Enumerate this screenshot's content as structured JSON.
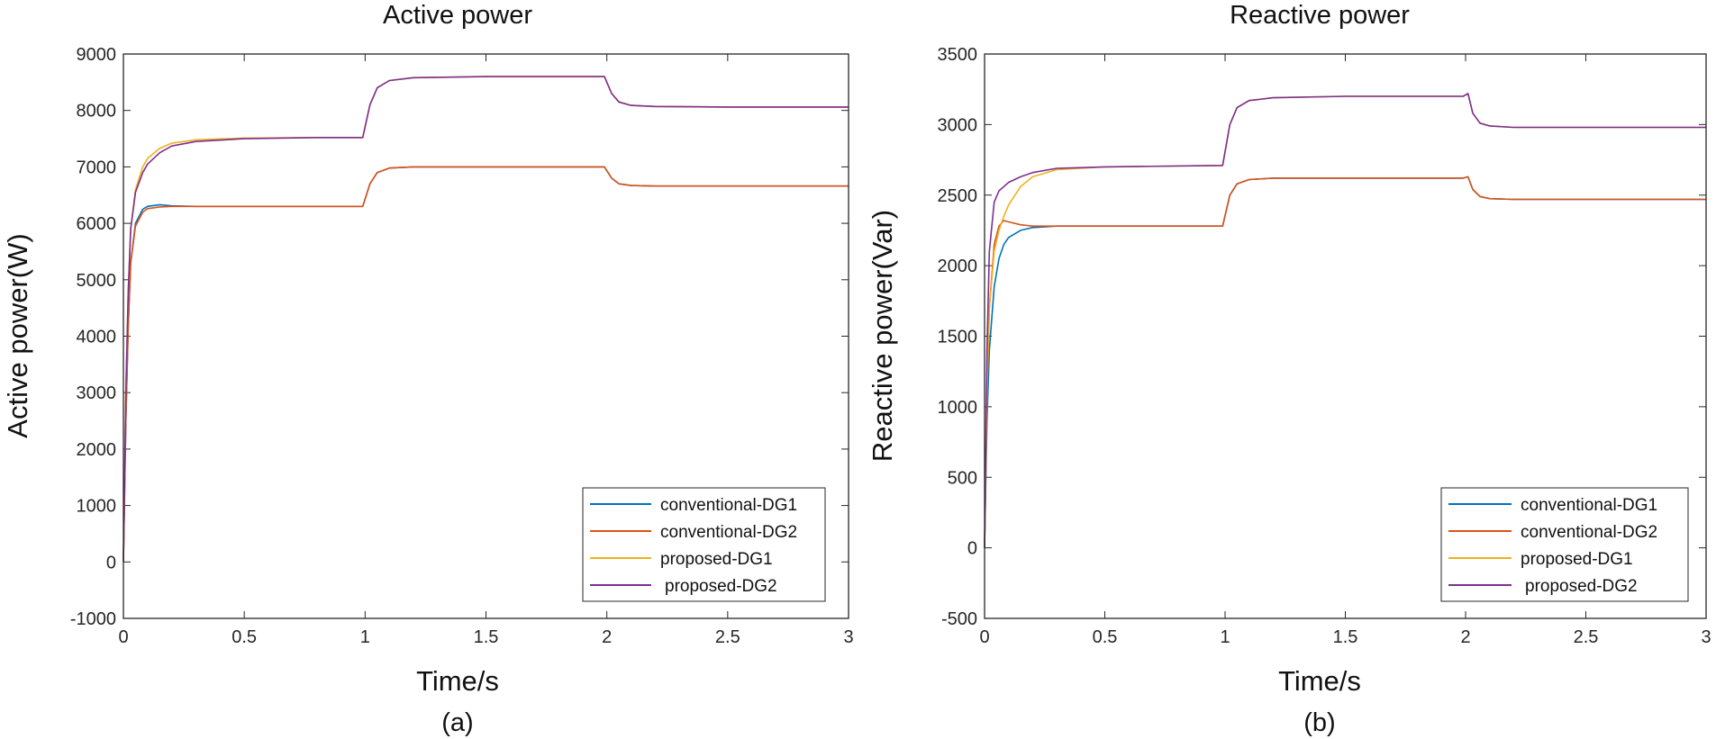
{
  "chart_data": [
    {
      "type": "line",
      "title": "Active power",
      "xlabel": "Time/s",
      "ylabel": "Active power(W)",
      "caption": "(a)",
      "xlim": [
        0,
        3
      ],
      "ylim": [
        -1000,
        9000
      ],
      "xticks": [
        0,
        0.5,
        1,
        1.5,
        2,
        2.5,
        3
      ],
      "yticks": [
        -1000,
        0,
        1000,
        2000,
        3000,
        4000,
        5000,
        6000,
        7000,
        8000,
        9000
      ],
      "xtick_labels": [
        "0",
        "0.5",
        "1",
        "1.5",
        "2",
        "2.5",
        "3"
      ],
      "ytick_labels": [
        "-1000",
        "0",
        "1000",
        "2000",
        "3000",
        "4000",
        "5000",
        "6000",
        "7000",
        "8000",
        "9000"
      ],
      "legend_position": "bottom-right",
      "series": [
        {
          "name": "conventional-DG1",
          "color": "#0072BD",
          "x": [
            0,
            0.01,
            0.02,
            0.03,
            0.05,
            0.08,
            0.1,
            0.15,
            0.2,
            0.3,
            0.5,
            0.8,
            0.99,
            1.02,
            1.05,
            1.1,
            1.2,
            1.5,
            1.99,
            2.02,
            2.05,
            2.1,
            2.2,
            2.5,
            3.0
          ],
          "y": [
            0,
            2500,
            4200,
            5300,
            6000,
            6250,
            6300,
            6330,
            6310,
            6300,
            6300,
            6300,
            6300,
            6700,
            6900,
            6980,
            7000,
            7000,
            7000,
            6800,
            6700,
            6670,
            6660,
            6660,
            6660
          ]
        },
        {
          "name": "conventional-DG2",
          "color": "#D95319",
          "x": [
            0,
            0.01,
            0.02,
            0.03,
            0.05,
            0.08,
            0.1,
            0.15,
            0.2,
            0.3,
            0.5,
            0.8,
            0.99,
            1.02,
            1.05,
            1.1,
            1.2,
            1.5,
            1.99,
            2.02,
            2.05,
            2.1,
            2.2,
            2.5,
            3.0
          ],
          "y": [
            0,
            2500,
            4200,
            5300,
            5950,
            6200,
            6260,
            6290,
            6300,
            6300,
            6300,
            6300,
            6300,
            6700,
            6900,
            6980,
            7000,
            7000,
            7000,
            6800,
            6700,
            6670,
            6660,
            6660,
            6660
          ]
        },
        {
          "name": "proposed-DG1",
          "color": "#EDB120",
          "x": [
            0,
            0.01,
            0.02,
            0.03,
            0.05,
            0.08,
            0.1,
            0.15,
            0.2,
            0.3,
            0.5,
            0.8,
            0.99,
            1.02,
            1.05,
            1.1,
            1.2,
            1.5,
            1.99,
            2.02,
            2.05,
            2.1,
            2.2,
            2.5,
            3.0
          ],
          "y": [
            0,
            3000,
            4800,
            5900,
            6600,
            7000,
            7150,
            7330,
            7420,
            7480,
            7510,
            7520,
            7520,
            8100,
            8400,
            8530,
            8580,
            8600,
            8600,
            8300,
            8150,
            8090,
            8070,
            8060,
            8060
          ]
        },
        {
          "name": "proposed-DG2",
          "color": "#7E2F8E",
          "x": [
            0,
            0.01,
            0.02,
            0.03,
            0.05,
            0.08,
            0.1,
            0.15,
            0.2,
            0.3,
            0.5,
            0.8,
            0.99,
            1.02,
            1.05,
            1.1,
            1.2,
            1.5,
            1.99,
            2.02,
            2.05,
            2.1,
            2.2,
            2.5,
            3.0
          ],
          "y": [
            0,
            3000,
            4800,
            5900,
            6550,
            6900,
            7050,
            7250,
            7370,
            7450,
            7500,
            7520,
            7520,
            8100,
            8400,
            8530,
            8580,
            8600,
            8600,
            8300,
            8150,
            8090,
            8070,
            8060,
            8060
          ]
        }
      ]
    },
    {
      "type": "line",
      "title": "Reactive power",
      "xlabel": "Time/s",
      "ylabel": "Reactive power(Var)",
      "caption": "(b)",
      "xlim": [
        0,
        3
      ],
      "ylim": [
        -500,
        3500
      ],
      "xticks": [
        0,
        0.5,
        1,
        1.5,
        2,
        2.5,
        3
      ],
      "yticks": [
        -500,
        0,
        500,
        1000,
        1500,
        2000,
        2500,
        3000,
        3500
      ],
      "xtick_labels": [
        "0",
        "0.5",
        "1",
        "1.5",
        "2",
        "2.5",
        "3"
      ],
      "ytick_labels": [
        "-500",
        "0",
        "500",
        "1000",
        "1500",
        "2000",
        "2500",
        "3000",
        "3500"
      ],
      "legend_position": "bottom-right",
      "series": [
        {
          "name": "conventional-DG1",
          "color": "#0072BD",
          "x": [
            0,
            0.01,
            0.02,
            0.04,
            0.06,
            0.08,
            0.1,
            0.15,
            0.2,
            0.3,
            0.5,
            0.99,
            1.02,
            1.05,
            1.1,
            1.2,
            1.5,
            1.99,
            2.01,
            2.03,
            2.06,
            2.1,
            2.2,
            2.5,
            3.0
          ],
          "y": [
            0,
            900,
            1400,
            1850,
            2050,
            2150,
            2200,
            2250,
            2270,
            2280,
            2280,
            2280,
            2500,
            2580,
            2610,
            2620,
            2620,
            2620,
            2630,
            2540,
            2490,
            2475,
            2470,
            2470,
            2470
          ]
        },
        {
          "name": "conventional-DG2",
          "color": "#D95319",
          "x": [
            0,
            0.01,
            0.02,
            0.04,
            0.06,
            0.08,
            0.1,
            0.15,
            0.2,
            0.3,
            0.5,
            0.99,
            1.02,
            1.05,
            1.1,
            1.2,
            1.5,
            1.99,
            2.01,
            2.03,
            2.06,
            2.1,
            2.2,
            2.5,
            3.0
          ],
          "y": [
            0,
            1100,
            1700,
            2150,
            2280,
            2320,
            2310,
            2290,
            2280,
            2280,
            2280,
            2280,
            2500,
            2580,
            2610,
            2620,
            2620,
            2620,
            2630,
            2540,
            2490,
            2475,
            2470,
            2470,
            2470
          ]
        },
        {
          "name": "proposed-DG1",
          "color": "#EDB120",
          "x": [
            0,
            0.01,
            0.02,
            0.04,
            0.06,
            0.08,
            0.1,
            0.15,
            0.2,
            0.3,
            0.5,
            0.99,
            1.02,
            1.05,
            1.1,
            1.2,
            1.5,
            1.99,
            2.01,
            2.03,
            2.06,
            2.1,
            2.2,
            2.5,
            3.0
          ],
          "y": [
            0,
            1100,
            1700,
            2100,
            2250,
            2350,
            2430,
            2560,
            2630,
            2680,
            2700,
            2710,
            3000,
            3120,
            3170,
            3190,
            3200,
            3200,
            3220,
            3080,
            3010,
            2990,
            2980,
            2980,
            2980
          ]
        },
        {
          "name": "proposed-DG2",
          "color": "#7E2F8E",
          "x": [
            0,
            0.01,
            0.02,
            0.04,
            0.06,
            0.08,
            0.1,
            0.15,
            0.2,
            0.3,
            0.5,
            0.99,
            1.02,
            1.05,
            1.1,
            1.2,
            1.5,
            1.99,
            2.01,
            2.03,
            2.06,
            2.1,
            2.2,
            2.5,
            3.0
          ],
          "y": [
            0,
            1400,
            2100,
            2450,
            2530,
            2560,
            2590,
            2630,
            2660,
            2690,
            2700,
            2710,
            3000,
            3120,
            3170,
            3190,
            3200,
            3200,
            3220,
            3080,
            3010,
            2990,
            2980,
            2980,
            2980
          ]
        }
      ]
    }
  ]
}
